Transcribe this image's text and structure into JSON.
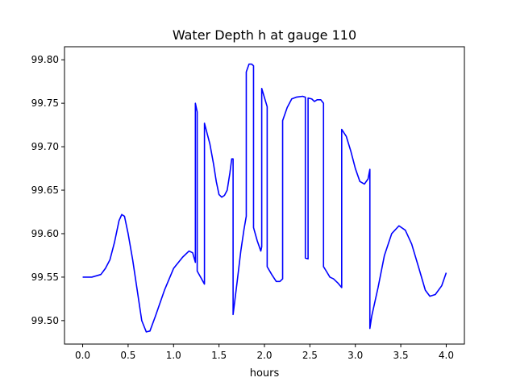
{
  "chart_data": {
    "type": "line",
    "title": "Water Depth h at gauge 110",
    "xlabel": "hours",
    "ylabel": "",
    "xlim": [
      -0.2,
      4.2
    ],
    "ylim": [
      99.473,
      99.815
    ],
    "xticks": [
      0.0,
      0.5,
      1.0,
      1.5,
      2.0,
      2.5,
      3.0,
      3.5,
      4.0
    ],
    "xtick_labels": [
      "0.0",
      "0.5",
      "1.0",
      "1.5",
      "2.0",
      "2.5",
      "3.0",
      "3.5",
      "4.0"
    ],
    "yticks": [
      99.5,
      99.55,
      99.6,
      99.65,
      99.7,
      99.75,
      99.8
    ],
    "ytick_labels": [
      "99.50",
      "99.55",
      "99.60",
      "99.65",
      "99.70",
      "99.75",
      "99.80"
    ],
    "grid": false,
    "series": [
      {
        "color": "#0000ff",
        "x": [
          0.0,
          0.1,
          0.2,
          0.25,
          0.3,
          0.35,
          0.4,
          0.43,
          0.46,
          0.5,
          0.55,
          0.6,
          0.65,
          0.7,
          0.74,
          0.8,
          0.9,
          1.0,
          1.1,
          1.17,
          1.21,
          1.24,
          1.24,
          1.26,
          1.26,
          1.34,
          1.34,
          1.37,
          1.4,
          1.44,
          1.47,
          1.5,
          1.53,
          1.56,
          1.59,
          1.62,
          1.64,
          1.655,
          1.655,
          1.7,
          1.74,
          1.775,
          1.8,
          1.8,
          1.83,
          1.86,
          1.88,
          1.88,
          1.92,
          1.96,
          1.97,
          1.97,
          2.03,
          2.03,
          2.08,
          2.13,
          2.17,
          2.2,
          2.2,
          2.25,
          2.3,
          2.35,
          2.42,
          2.45,
          2.45,
          2.48,
          2.48,
          2.52,
          2.55,
          2.58,
          2.62,
          2.65,
          2.65,
          2.68,
          2.72,
          2.76,
          2.81,
          2.85,
          2.85,
          2.9,
          2.95,
          3.0,
          3.05,
          3.1,
          3.14,
          3.16,
          3.16,
          3.18,
          3.25,
          3.32,
          3.4,
          3.48,
          3.55,
          3.62,
          3.7,
          3.77,
          3.82,
          3.88,
          3.95,
          4.0
        ],
        "y": [
          99.55,
          99.55,
          99.553,
          99.56,
          99.57,
          99.59,
          99.615,
          99.622,
          99.62,
          99.6,
          99.57,
          99.535,
          99.5,
          99.487,
          99.488,
          99.505,
          99.535,
          99.56,
          99.573,
          99.58,
          99.578,
          99.567,
          99.75,
          99.74,
          99.557,
          99.542,
          99.727,
          99.715,
          99.703,
          99.68,
          99.66,
          99.645,
          99.642,
          99.644,
          99.65,
          99.67,
          99.686,
          99.686,
          99.507,
          99.545,
          99.58,
          99.605,
          99.62,
          99.786,
          99.795,
          99.795,
          99.793,
          99.607,
          99.592,
          99.58,
          99.585,
          99.767,
          99.746,
          99.562,
          99.553,
          99.545,
          99.545,
          99.548,
          99.73,
          99.745,
          99.755,
          99.757,
          99.758,
          99.757,
          99.572,
          99.571,
          99.756,
          99.755,
          99.752,
          99.754,
          99.754,
          99.75,
          99.562,
          99.557,
          99.55,
          99.548,
          99.543,
          99.538,
          99.72,
          99.712,
          99.695,
          99.675,
          99.66,
          99.657,
          99.663,
          99.674,
          99.491,
          99.505,
          99.538,
          99.575,
          99.6,
          99.609,
          99.604,
          99.588,
          99.56,
          99.535,
          99.528,
          99.53,
          99.54,
          99.555
        ]
      }
    ]
  }
}
